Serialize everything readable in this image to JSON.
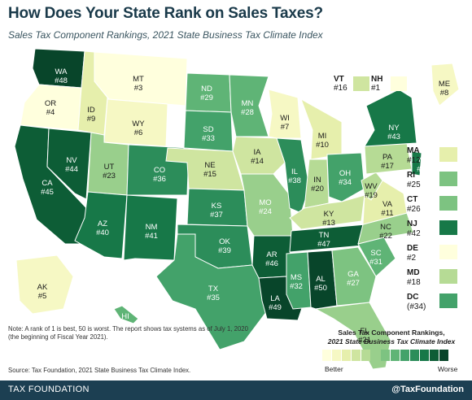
{
  "title": "How Does Your State Rank on Sales Taxes?",
  "subtitle": "Sales Tax Component Rankings, 2021 State Business Tax Climate Index",
  "colors": {
    "scale": [
      "#ffffdd",
      "#f6f8c4",
      "#e6efac",
      "#cfe5a0",
      "#b6db95",
      "#99cf8c",
      "#7dc381",
      "#5fb476",
      "#43a26a",
      "#2c8d5a",
      "#177848",
      "#0d5d36",
      "#08452a"
    ],
    "outline": "#ffffff",
    "footer": "#1c3f52"
  },
  "states": {
    "WA": {
      "label": "WA",
      "rank": "#48"
    },
    "OR": {
      "label": "OR",
      "rank": "#4"
    },
    "CA": {
      "label": "CA",
      "rank": "#45"
    },
    "NV": {
      "label": "NV",
      "rank": "#44"
    },
    "ID": {
      "label": "ID",
      "rank": "#9"
    },
    "MT": {
      "label": "MT",
      "rank": "#3"
    },
    "WY": {
      "label": "WY",
      "rank": "#6"
    },
    "UT": {
      "label": "UT",
      "rank": "#23"
    },
    "AZ": {
      "label": "AZ",
      "rank": "#40"
    },
    "CO": {
      "label": "CO",
      "rank": "#36"
    },
    "NM": {
      "label": "NM",
      "rank": "#41"
    },
    "ND": {
      "label": "ND",
      "rank": "#29"
    },
    "SD": {
      "label": "SD",
      "rank": "#33"
    },
    "NE": {
      "label": "NE",
      "rank": "#15"
    },
    "KS": {
      "label": "KS",
      "rank": "#37"
    },
    "OK": {
      "label": "OK",
      "rank": "#39"
    },
    "TX": {
      "label": "TX",
      "rank": "#35"
    },
    "MN": {
      "label": "MN",
      "rank": "#28"
    },
    "IA": {
      "label": "IA",
      "rank": "#14"
    },
    "MO": {
      "label": "MO",
      "rank": "#24"
    },
    "AR": {
      "label": "AR",
      "rank": "#46"
    },
    "LA": {
      "label": "LA",
      "rank": "#49"
    },
    "WI": {
      "label": "WI",
      "rank": "#7"
    },
    "IL": {
      "label": "IL",
      "rank": "#38"
    },
    "MI": {
      "label": "MI",
      "rank": "#10"
    },
    "IN": {
      "label": "IN",
      "rank": "#20"
    },
    "OH": {
      "label": "OH",
      "rank": "#34"
    },
    "KY": {
      "label": "KY",
      "rank": "#13"
    },
    "TN": {
      "label": "TN",
      "rank": "#47"
    },
    "MS": {
      "label": "MS",
      "rank": "#32"
    },
    "AL": {
      "label": "AL",
      "rank": "#50"
    },
    "GA": {
      "label": "GA",
      "rank": "#27"
    },
    "FL": {
      "label": "FL",
      "rank": "#21"
    },
    "SC": {
      "label": "SC",
      "rank": "#31"
    },
    "NC": {
      "label": "NC",
      "rank": "#22"
    },
    "VA": {
      "label": "VA",
      "rank": "#11"
    },
    "WV": {
      "label": "WV",
      "rank": "#19"
    },
    "PA": {
      "label": "PA",
      "rank": "#17"
    },
    "NY": {
      "label": "NY",
      "rank": "#43"
    },
    "ME": {
      "label": "ME",
      "rank": "#8"
    },
    "VT": {
      "label": "VT",
      "rank": "#16"
    },
    "NH": {
      "label": "NH",
      "rank": "#1"
    },
    "MA": {
      "label": "MA",
      "rank": "#12"
    },
    "RI": {
      "label": "RI",
      "rank": "#25"
    },
    "CT": {
      "label": "CT",
      "rank": "#26"
    },
    "NJ": {
      "label": "NJ",
      "rank": "#42"
    },
    "DE": {
      "label": "DE",
      "rank": "#2"
    },
    "MD": {
      "label": "MD",
      "rank": "#18"
    },
    "DC": {
      "label": "DC",
      "rank": "(#34)"
    },
    "AK": {
      "label": "AK",
      "rank": "#5"
    },
    "HI": {
      "label": "HI",
      "rank": "#30"
    }
  },
  "legend": {
    "title_line1": "Sales Tax Component Rankings,",
    "title_line2": "2021 State Business Tax Climate Index",
    "low": "Better",
    "high": "Worse"
  },
  "note": "Note: A rank of 1 is best, 50 is worst. The report shows tax systems as of July 1, 2020 (the beginning of Fiscal Year 2021).",
  "source": "Source: Tax Foundation, 2021 State Business Tax Climate Index.",
  "footer": {
    "left": "TAX FOUNDATION",
    "right": "@TaxFoundation"
  }
}
